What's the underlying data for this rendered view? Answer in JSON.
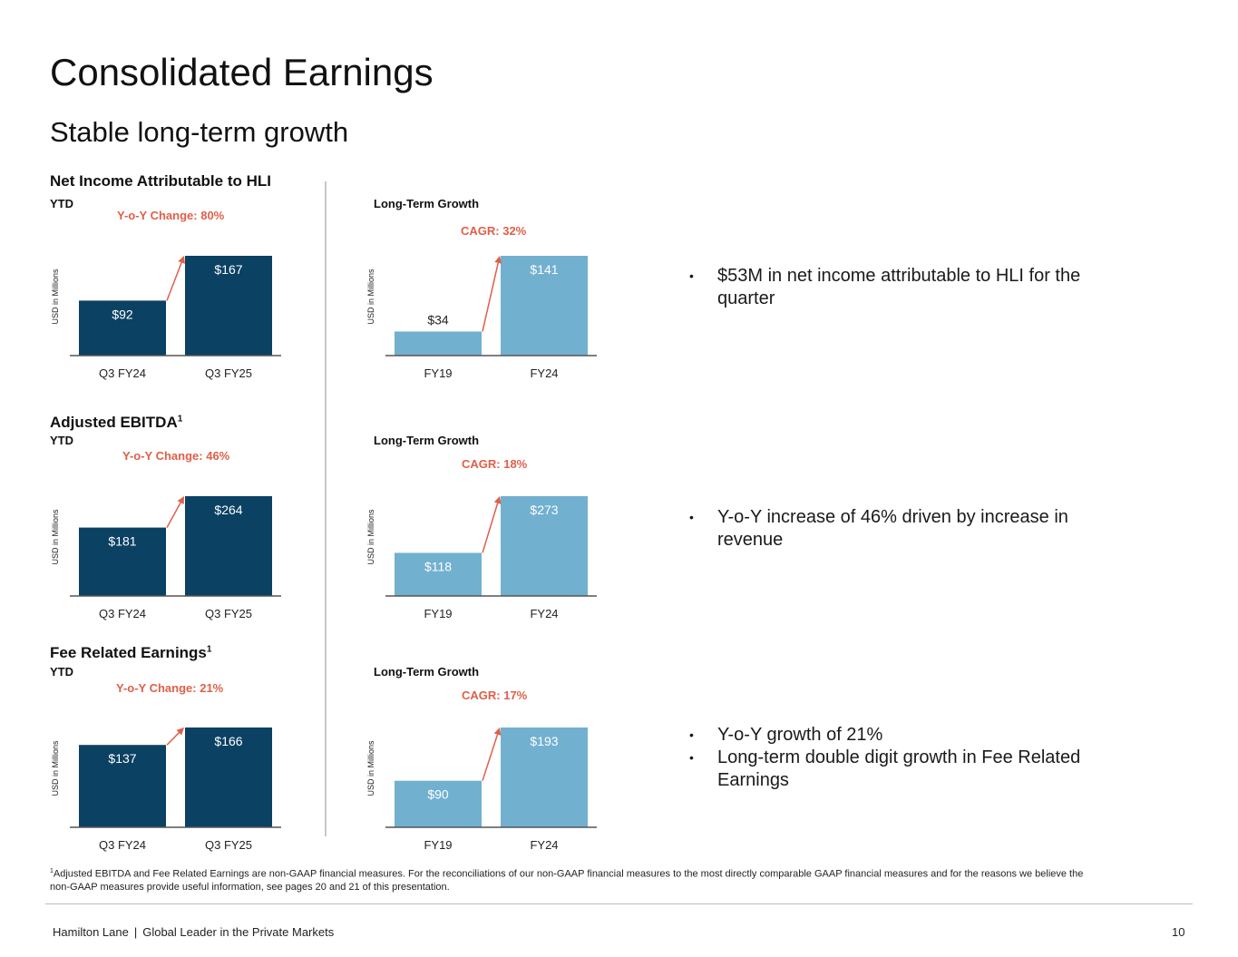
{
  "slide": {
    "title": "Consolidated Earnings",
    "subtitle": "Stable long-term growth"
  },
  "sections": [
    {
      "title": "Net Income Attributable to HLI",
      "footnote_mark": "",
      "ytd_label": "YTD",
      "ytd_change": "Y-o-Y Change: 80%",
      "lt_label": "Long-Term Growth",
      "lt_change": "CAGR: 32%",
      "bullets": [
        "$53M in net income attributable to HLI for the quarter"
      ]
    },
    {
      "title": "Adjusted EBITDA",
      "footnote_mark": "1",
      "ytd_label": "YTD",
      "ytd_change": "Y-o-Y Change: 46%",
      "lt_label": "Long-Term Growth",
      "lt_change": "CAGR: 18%",
      "bullets": [
        "Y-o-Y increase of 46% driven by increase in revenue"
      ]
    },
    {
      "title": "Fee Related Earnings",
      "footnote_mark": "1",
      "ytd_label": "YTD",
      "ytd_change": "Y-o-Y Change: 21%",
      "lt_label": "Long-Term Growth",
      "lt_change": "CAGR: 17%",
      "bullets": [
        "Y-o-Y growth of 21%",
        "Long-term double digit growth in Fee Related Earnings"
      ]
    }
  ],
  "chart_data": [
    {
      "type": "bar",
      "categories": [
        "Q3 FY24",
        "Q3 FY25"
      ],
      "values": [
        92,
        167
      ],
      "labels": [
        "$92",
        "$167"
      ],
      "ylabel": "USD in Millions",
      "color": "#0b4163"
    },
    {
      "type": "bar",
      "categories": [
        "FY19",
        "FY24"
      ],
      "values": [
        34,
        141
      ],
      "labels": [
        "$34",
        "$141"
      ],
      "ylabel": "USD in Millions",
      "color": "#72b0cf"
    },
    {
      "type": "bar",
      "categories": [
        "Q3 FY24",
        "Q3 FY25"
      ],
      "values": [
        181,
        264
      ],
      "labels": [
        "$181",
        "$264"
      ],
      "ylabel": "USD in Millions",
      "color": "#0b4163"
    },
    {
      "type": "bar",
      "categories": [
        "FY19",
        "FY24"
      ],
      "values": [
        118,
        273
      ],
      "labels": [
        "$118",
        "$273"
      ],
      "ylabel": "USD in Millions",
      "color": "#72b0cf"
    },
    {
      "type": "bar",
      "categories": [
        "Q3 FY24",
        "Q3 FY25"
      ],
      "values": [
        137,
        166
      ],
      "labels": [
        "$137",
        "$166"
      ],
      "ylabel": "USD in Millions",
      "color": "#0b4163"
    },
    {
      "type": "bar",
      "categories": [
        "FY19",
        "FY24"
      ],
      "values": [
        90,
        193
      ],
      "labels": [
        "$90",
        "$193"
      ],
      "ylabel": "USD in Millions",
      "color": "#72b0cf"
    }
  ],
  "colors": {
    "arrow": "#e05f49",
    "axis": "#555555",
    "dark_bar": "#0b4163",
    "light_bar": "#72b0cf"
  },
  "footnote": {
    "mark": "1",
    "text": "Adjusted EBITDA and Fee Related Earnings are non-GAAP financial measures. For the reconciliations of our non-GAAP financial measures to the most directly comparable GAAP financial measures and for the reasons we believe the non-GAAP measures provide useful information, see pages 20 and 21 of this presentation."
  },
  "footer": {
    "company": "Hamilton Lane",
    "separator": "|",
    "tagline": "Global Leader in the Private Markets",
    "page_number": "10"
  }
}
